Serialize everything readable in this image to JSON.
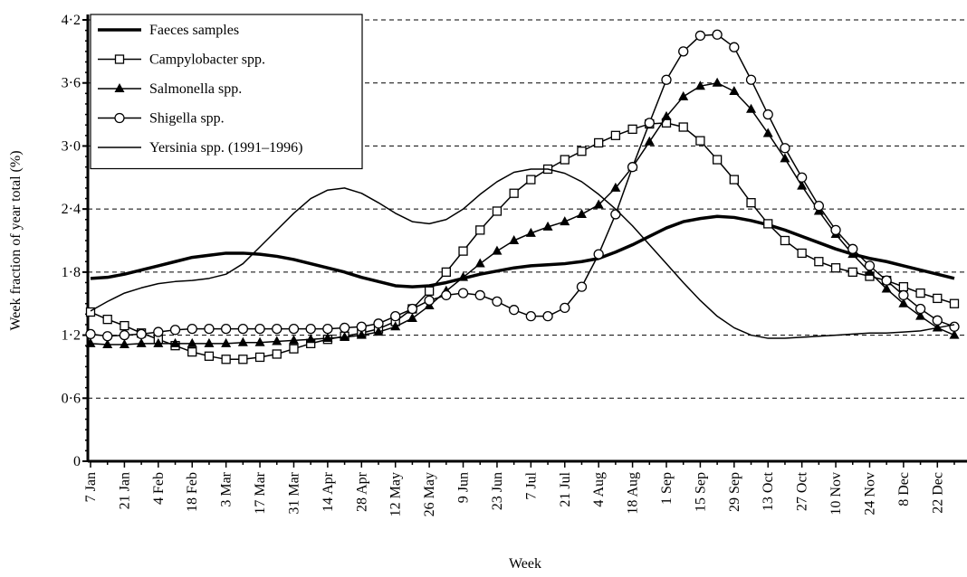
{
  "chart_data": {
    "type": "line",
    "x_label": "Week",
    "y_label": "Week fraction of year total (%)",
    "categories": [
      "7 Jan",
      null,
      "21 Jan",
      null,
      "4 Feb",
      null,
      "18 Feb",
      null,
      "3 Mar",
      null,
      "17 Mar",
      null,
      "31 Mar",
      null,
      "14 Apr",
      null,
      "28 Apr",
      null,
      "12 May",
      null,
      "26 May",
      null,
      "9 Jun",
      null,
      "23 Jun",
      null,
      "7 Jul",
      null,
      "21 Jul",
      null,
      "4 Aug",
      null,
      "18 Aug",
      null,
      "1 Sep",
      null,
      "15 Sep",
      null,
      "29 Sep",
      null,
      "13 Oct",
      null,
      "27 Oct",
      null,
      "10 Nov",
      null,
      "24 Nov",
      null,
      "8 Dec",
      null,
      "22 Dec",
      null
    ],
    "ylim": [
      0,
      4.2
    ],
    "yticks": [
      0,
      {
        "value": 0.6,
        "label": "0·6"
      },
      {
        "value": 1.2,
        "label": "1·2"
      },
      {
        "value": 1.8,
        "label": "1·8"
      },
      {
        "value": 2.4,
        "label": "2·4"
      },
      {
        "value": 3.0,
        "label": "3·0"
      },
      {
        "value": 3.6,
        "label": "3·6"
      },
      {
        "value": 4.2,
        "label": "4·2"
      }
    ],
    "grid": true,
    "legend": "upper left",
    "series": [
      {
        "name": "Faeces samples",
        "color": "#000000",
        "marker": "none",
        "line_width": 3.5,
        "values": [
          1.74,
          1.75,
          1.78,
          1.82,
          1.86,
          1.9,
          1.94,
          1.96,
          1.98,
          1.98,
          1.97,
          1.95,
          1.92,
          1.88,
          1.84,
          1.8,
          1.75,
          1.71,
          1.67,
          1.66,
          1.67,
          1.7,
          1.74,
          1.78,
          1.81,
          1.84,
          1.86,
          1.87,
          1.88,
          1.9,
          1.93,
          1.99,
          2.06,
          2.14,
          2.22,
          2.28,
          2.31,
          2.33,
          2.32,
          2.29,
          2.25,
          2.2,
          2.14,
          2.08,
          2.02,
          1.97,
          1.93,
          1.9,
          1.86,
          1.82,
          1.78,
          1.74
        ]
      },
      {
        "name": "Campylobacter spp.",
        "color": "#000000",
        "marker": "square",
        "line_width": 1.5,
        "values": [
          1.42,
          1.35,
          1.29,
          1.22,
          1.16,
          1.1,
          1.04,
          1.0,
          0.97,
          0.97,
          0.99,
          1.02,
          1.07,
          1.12,
          1.16,
          1.19,
          1.22,
          1.26,
          1.33,
          1.45,
          1.62,
          1.8,
          2.0,
          2.2,
          2.38,
          2.55,
          2.68,
          2.78,
          2.87,
          2.95,
          3.03,
          3.1,
          3.16,
          3.21,
          3.22,
          3.18,
          3.05,
          2.87,
          2.68,
          2.46,
          2.26,
          2.1,
          1.98,
          1.9,
          1.84,
          1.8,
          1.76,
          1.72,
          1.66,
          1.6,
          1.55,
          1.5
        ]
      },
      {
        "name": "Salmonella spp.",
        "color": "#000000",
        "marker": "triangle",
        "line_width": 1.5,
        "values": [
          1.12,
          1.11,
          1.11,
          1.12,
          1.12,
          1.12,
          1.12,
          1.12,
          1.12,
          1.13,
          1.13,
          1.14,
          1.15,
          1.16,
          1.17,
          1.18,
          1.2,
          1.23,
          1.28,
          1.36,
          1.48,
          1.62,
          1.75,
          1.88,
          2.0,
          2.1,
          2.17,
          2.23,
          2.28,
          2.35,
          2.44,
          2.6,
          2.8,
          3.04,
          3.28,
          3.47,
          3.57,
          3.6,
          3.52,
          3.35,
          3.12,
          2.88,
          2.62,
          2.38,
          2.16,
          1.97,
          1.8,
          1.64,
          1.5,
          1.38,
          1.27,
          1.2
        ]
      },
      {
        "name": "Shigella spp.",
        "color": "#000000",
        "marker": "circle",
        "line_width": 1.5,
        "values": [
          1.21,
          1.19,
          1.2,
          1.21,
          1.23,
          1.25,
          1.26,
          1.26,
          1.26,
          1.26,
          1.26,
          1.26,
          1.26,
          1.26,
          1.26,
          1.27,
          1.28,
          1.31,
          1.38,
          1.45,
          1.53,
          1.58,
          1.6,
          1.58,
          1.52,
          1.44,
          1.38,
          1.38,
          1.46,
          1.66,
          1.97,
          2.35,
          2.8,
          3.22,
          3.63,
          3.9,
          4.05,
          4.06,
          3.94,
          3.63,
          3.3,
          2.98,
          2.7,
          2.43,
          2.2,
          2.02,
          1.86,
          1.72,
          1.58,
          1.45,
          1.34,
          1.28
        ]
      },
      {
        "name": "Yersinia spp. (1991–1996)",
        "color": "#000000",
        "marker": "none",
        "line_width": 1.5,
        "values": [
          1.43,
          1.52,
          1.6,
          1.65,
          1.69,
          1.71,
          1.72,
          1.74,
          1.78,
          1.88,
          2.04,
          2.2,
          2.36,
          2.5,
          2.58,
          2.6,
          2.55,
          2.46,
          2.36,
          2.28,
          2.26,
          2.3,
          2.4,
          2.54,
          2.66,
          2.75,
          2.78,
          2.78,
          2.74,
          2.66,
          2.54,
          2.4,
          2.24,
          2.06,
          1.88,
          1.7,
          1.53,
          1.38,
          1.27,
          1.2,
          1.17,
          1.17,
          1.18,
          1.19,
          1.2,
          1.21,
          1.22,
          1.22,
          1.23,
          1.24,
          1.27,
          1.3
        ]
      }
    ]
  }
}
